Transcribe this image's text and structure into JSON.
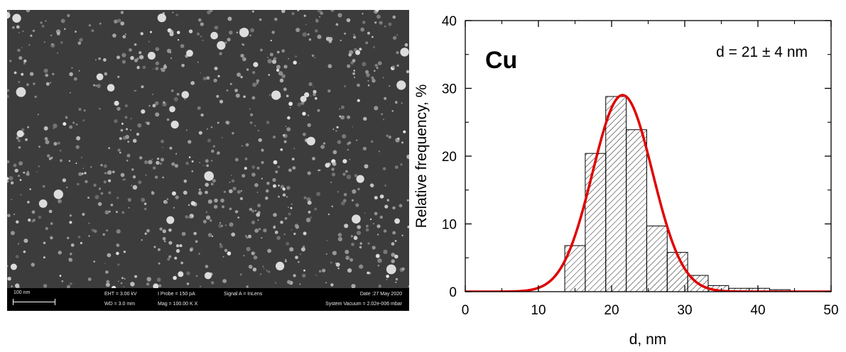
{
  "sem_panel": {
    "scale_bar_label": "100 nm",
    "eht": "EHT =  3.00 kV",
    "wd": "WD =  3.0 mm",
    "iprobe": "I Probe =   150 pA",
    "mag": "Mag =  100.00 K X",
    "signal": "Signal A = InLens",
    "date": "Date :27 May 2020",
    "vacuum": "System Vacuum = 2.02e-006 mbar"
  },
  "chart_data": {
    "type": "bar",
    "title": "",
    "sample_label": "Cu",
    "annotation": "d = 21 ± 4 nm",
    "xlabel": "d, nm",
    "ylabel": "Relative frequency, %",
    "xlim": [
      0,
      50
    ],
    "ylim": [
      0,
      40
    ],
    "xticks": [
      0,
      10,
      20,
      30,
      40,
      50
    ],
    "yticks": [
      0,
      10,
      20,
      30,
      40
    ],
    "bin_width": 2.8,
    "bins": [
      {
        "x0": 13.6,
        "value": 6.8
      },
      {
        "x0": 16.4,
        "value": 20.4
      },
      {
        "x0": 19.2,
        "value": 28.8
      },
      {
        "x0": 22.0,
        "value": 23.9
      },
      {
        "x0": 24.8,
        "value": 9.7
      },
      {
        "x0": 27.6,
        "value": 5.8
      },
      {
        "x0": 30.4,
        "value": 2.4
      },
      {
        "x0": 33.2,
        "value": 0.9
      },
      {
        "x0": 36.0,
        "value": 0.5
      },
      {
        "x0": 38.8,
        "value": 0.5
      },
      {
        "x0": 41.6,
        "value": 0.3
      }
    ],
    "fit": {
      "type": "gaussian",
      "mean": 21.5,
      "sigma": 4.1,
      "peak": 29.0,
      "color": "#e00000"
    },
    "bar_fill": "hatched",
    "grid": false
  }
}
